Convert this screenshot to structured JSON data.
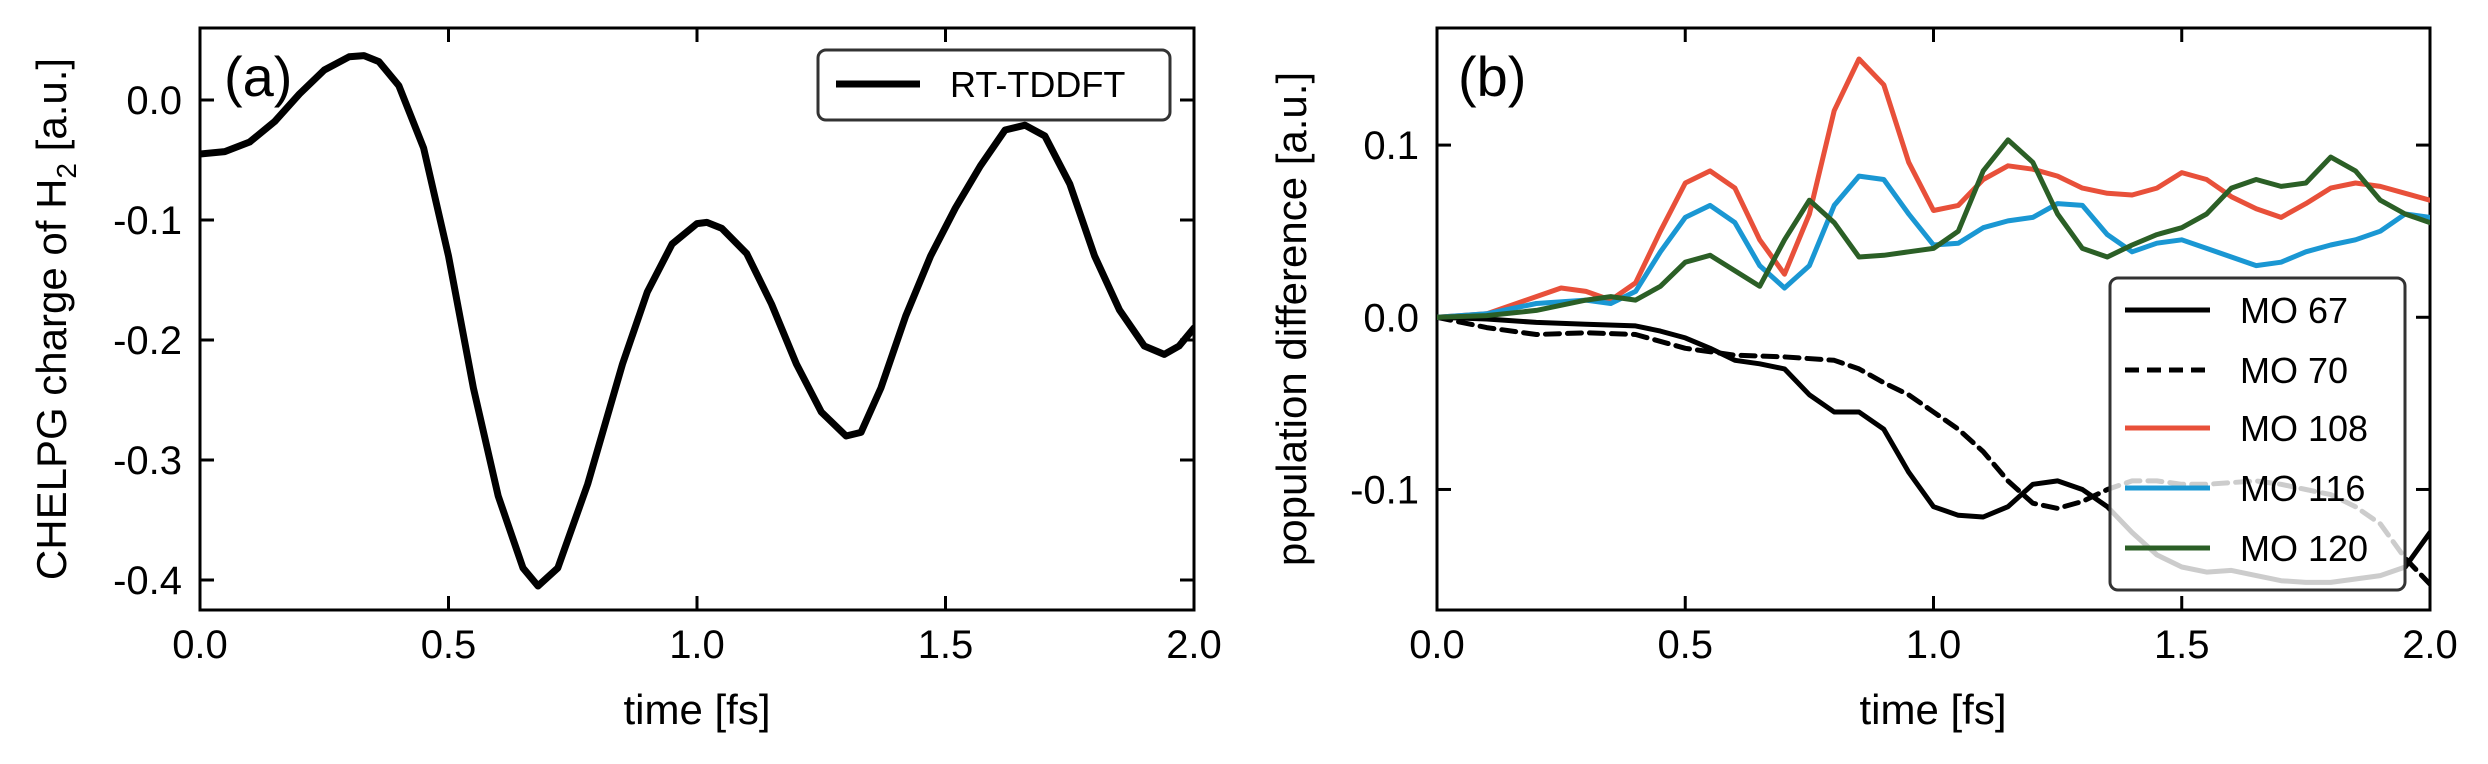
{
  "chart_data": [
    {
      "type": "line",
      "panel": "(a)",
      "xlabel": "time [fs]",
      "ylabel": "CHELPG charge of H",
      "ylabel_sub": "2",
      "ylabel_tail": " [a.u.]",
      "xlim": [
        0.0,
        2.0
      ],
      "ylim": [
        -0.425,
        0.06
      ],
      "xticks": [
        0.0,
        0.5,
        1.0,
        1.5,
        2.0
      ],
      "xtick_labels": [
        "0.0",
        "0.5",
        "1.0",
        "1.5",
        "2.0"
      ],
      "yticks": [
        0.0,
        -0.1,
        -0.2,
        -0.3,
        -0.4
      ],
      "ytick_labels": [
        "0.0",
        "-0.1",
        "-0.2",
        "-0.3",
        "-0.4"
      ],
      "legend_position": "top-right",
      "grid": false,
      "series": [
        {
          "name": "RT-TDDFT",
          "color": "#000000",
          "dash": "",
          "points": [
            [
              0.0,
              -0.045
            ],
            [
              0.05,
              -0.043
            ],
            [
              0.1,
              -0.035
            ],
            [
              0.15,
              -0.018
            ],
            [
              0.2,
              0.005
            ],
            [
              0.25,
              0.025
            ],
            [
              0.3,
              0.036
            ],
            [
              0.33,
              0.037
            ],
            [
              0.36,
              0.032
            ],
            [
              0.4,
              0.012
            ],
            [
              0.45,
              -0.04
            ],
            [
              0.5,
              -0.13
            ],
            [
              0.55,
              -0.24
            ],
            [
              0.6,
              -0.33
            ],
            [
              0.65,
              -0.39
            ],
            [
              0.68,
              -0.405
            ],
            [
              0.72,
              -0.39
            ],
            [
              0.78,
              -0.32
            ],
            [
              0.85,
              -0.22
            ],
            [
              0.9,
              -0.16
            ],
            [
              0.95,
              -0.12
            ],
            [
              1.0,
              -0.103
            ],
            [
              1.02,
              -0.102
            ],
            [
              1.05,
              -0.107
            ],
            [
              1.1,
              -0.128
            ],
            [
              1.15,
              -0.17
            ],
            [
              1.2,
              -0.22
            ],
            [
              1.25,
              -0.26
            ],
            [
              1.3,
              -0.28
            ],
            [
              1.33,
              -0.277
            ],
            [
              1.37,
              -0.24
            ],
            [
              1.42,
              -0.18
            ],
            [
              1.47,
              -0.13
            ],
            [
              1.52,
              -0.09
            ],
            [
              1.57,
              -0.055
            ],
            [
              1.62,
              -0.025
            ],
            [
              1.66,
              -0.021
            ],
            [
              1.7,
              -0.03
            ],
            [
              1.75,
              -0.07
            ],
            [
              1.8,
              -0.13
            ],
            [
              1.85,
              -0.175
            ],
            [
              1.9,
              -0.205
            ],
            [
              1.94,
              -0.212
            ],
            [
              1.97,
              -0.205
            ],
            [
              2.0,
              -0.19
            ]
          ]
        }
      ]
    },
    {
      "type": "line",
      "panel": "(b)",
      "xlabel": "time [fs]",
      "ylabel": "population difference [a.u.]",
      "xlim": [
        0.0,
        2.0
      ],
      "ylim": [
        -0.17,
        0.168
      ],
      "xticks": [
        0.0,
        0.5,
        1.0,
        1.5,
        2.0
      ],
      "xtick_labels": [
        "0.0",
        "0.5",
        "1.0",
        "1.5",
        "2.0"
      ],
      "yticks": [
        0.1,
        0.0,
        -0.1
      ],
      "ytick_labels": [
        "0.1",
        "0.0",
        "-0.1"
      ],
      "legend_position": "lower-right",
      "grid": false,
      "series": [
        {
          "name": "MO 67",
          "color": "#000000",
          "dash": "",
          "points": [
            [
              0.0,
              0.0
            ],
            [
              0.1,
              -0.001
            ],
            [
              0.2,
              -0.003
            ],
            [
              0.3,
              -0.004
            ],
            [
              0.4,
              -0.005
            ],
            [
              0.45,
              -0.008
            ],
            [
              0.5,
              -0.012
            ],
            [
              0.55,
              -0.018
            ],
            [
              0.6,
              -0.025
            ],
            [
              0.65,
              -0.027
            ],
            [
              0.7,
              -0.03
            ],
            [
              0.75,
              -0.045
            ],
            [
              0.8,
              -0.055
            ],
            [
              0.85,
              -0.055
            ],
            [
              0.9,
              -0.065
            ],
            [
              0.95,
              -0.09
            ],
            [
              1.0,
              -0.11
            ],
            [
              1.05,
              -0.115
            ],
            [
              1.1,
              -0.116
            ],
            [
              1.15,
              -0.11
            ],
            [
              1.2,
              -0.097
            ],
            [
              1.25,
              -0.095
            ],
            [
              1.3,
              -0.1
            ],
            [
              1.35,
              -0.11
            ],
            [
              1.4,
              -0.125
            ],
            [
              1.45,
              -0.138
            ],
            [
              1.5,
              -0.145
            ],
            [
              1.55,
              -0.148
            ],
            [
              1.6,
              -0.147
            ],
            [
              1.65,
              -0.15
            ],
            [
              1.7,
              -0.153
            ],
            [
              1.75,
              -0.154
            ],
            [
              1.8,
              -0.154
            ],
            [
              1.85,
              -0.152
            ],
            [
              1.9,
              -0.15
            ],
            [
              1.95,
              -0.145
            ],
            [
              2.0,
              -0.125
            ]
          ]
        },
        {
          "name": "MO 70",
          "color": "#000000",
          "dash": "14 8",
          "points": [
            [
              0.0,
              0.0
            ],
            [
              0.1,
              -0.006
            ],
            [
              0.2,
              -0.01
            ],
            [
              0.3,
              -0.009
            ],
            [
              0.4,
              -0.01
            ],
            [
              0.5,
              -0.018
            ],
            [
              0.6,
              -0.022
            ],
            [
              0.7,
              -0.023
            ],
            [
              0.8,
              -0.025
            ],
            [
              0.85,
              -0.03
            ],
            [
              0.9,
              -0.038
            ],
            [
              0.95,
              -0.045
            ],
            [
              1.0,
              -0.055
            ],
            [
              1.05,
              -0.065
            ],
            [
              1.1,
              -0.078
            ],
            [
              1.15,
              -0.095
            ],
            [
              1.2,
              -0.108
            ],
            [
              1.25,
              -0.111
            ],
            [
              1.3,
              -0.107
            ],
            [
              1.35,
              -0.1
            ],
            [
              1.4,
              -0.095
            ],
            [
              1.45,
              -0.095
            ],
            [
              1.5,
              -0.097
            ],
            [
              1.55,
              -0.097
            ],
            [
              1.6,
              -0.096
            ],
            [
              1.65,
              -0.095
            ],
            [
              1.7,
              -0.097
            ],
            [
              1.75,
              -0.1
            ],
            [
              1.8,
              -0.103
            ],
            [
              1.85,
              -0.11
            ],
            [
              1.9,
              -0.12
            ],
            [
              1.95,
              -0.14
            ],
            [
              2.0,
              -0.155
            ]
          ]
        },
        {
          "name": "MO 108",
          "color": "#e8503a",
          "dash": "",
          "points": [
            [
              0.0,
              0.0
            ],
            [
              0.1,
              0.002
            ],
            [
              0.2,
              0.012
            ],
            [
              0.25,
              0.017
            ],
            [
              0.3,
              0.015
            ],
            [
              0.35,
              0.01
            ],
            [
              0.4,
              0.02
            ],
            [
              0.45,
              0.05
            ],
            [
              0.5,
              0.078
            ],
            [
              0.55,
              0.085
            ],
            [
              0.6,
              0.075
            ],
            [
              0.65,
              0.045
            ],
            [
              0.7,
              0.025
            ],
            [
              0.75,
              0.06
            ],
            [
              0.8,
              0.12
            ],
            [
              0.85,
              0.15
            ],
            [
              0.9,
              0.135
            ],
            [
              0.95,
              0.09
            ],
            [
              1.0,
              0.062
            ],
            [
              1.05,
              0.065
            ],
            [
              1.1,
              0.08
            ],
            [
              1.15,
              0.088
            ],
            [
              1.2,
              0.086
            ],
            [
              1.25,
              0.082
            ],
            [
              1.3,
              0.075
            ],
            [
              1.35,
              0.072
            ],
            [
              1.4,
              0.071
            ],
            [
              1.45,
              0.075
            ],
            [
              1.5,
              0.084
            ],
            [
              1.55,
              0.08
            ],
            [
              1.6,
              0.07
            ],
            [
              1.65,
              0.063
            ],
            [
              1.7,
              0.058
            ],
            [
              1.75,
              0.066
            ],
            [
              1.8,
              0.075
            ],
            [
              1.85,
              0.078
            ],
            [
              1.9,
              0.076
            ],
            [
              1.95,
              0.072
            ],
            [
              2.0,
              0.068
            ]
          ]
        },
        {
          "name": "MO 116",
          "color": "#1a97d3",
          "dash": "",
          "points": [
            [
              0.0,
              0.0
            ],
            [
              0.1,
              0.002
            ],
            [
              0.2,
              0.008
            ],
            [
              0.3,
              0.01
            ],
            [
              0.35,
              0.008
            ],
            [
              0.4,
              0.015
            ],
            [
              0.45,
              0.038
            ],
            [
              0.5,
              0.058
            ],
            [
              0.55,
              0.065
            ],
            [
              0.6,
              0.055
            ],
            [
              0.65,
              0.03
            ],
            [
              0.7,
              0.017
            ],
            [
              0.75,
              0.03
            ],
            [
              0.8,
              0.065
            ],
            [
              0.85,
              0.082
            ],
            [
              0.9,
              0.08
            ],
            [
              0.95,
              0.06
            ],
            [
              1.0,
              0.042
            ],
            [
              1.05,
              0.043
            ],
            [
              1.1,
              0.052
            ],
            [
              1.15,
              0.056
            ],
            [
              1.2,
              0.058
            ],
            [
              1.25,
              0.066
            ],
            [
              1.3,
              0.065
            ],
            [
              1.35,
              0.048
            ],
            [
              1.4,
              0.038
            ],
            [
              1.45,
              0.043
            ],
            [
              1.5,
              0.045
            ],
            [
              1.55,
              0.04
            ],
            [
              1.6,
              0.035
            ],
            [
              1.65,
              0.03
            ],
            [
              1.7,
              0.032
            ],
            [
              1.75,
              0.038
            ],
            [
              1.8,
              0.042
            ],
            [
              1.85,
              0.045
            ],
            [
              1.9,
              0.05
            ],
            [
              1.95,
              0.06
            ],
            [
              2.0,
              0.058
            ]
          ]
        },
        {
          "name": "MO 120",
          "color": "#2b5f26",
          "dash": "",
          "points": [
            [
              0.0,
              0.0
            ],
            [
              0.1,
              0.001
            ],
            [
              0.2,
              0.004
            ],
            [
              0.3,
              0.01
            ],
            [
              0.35,
              0.012
            ],
            [
              0.4,
              0.01
            ],
            [
              0.45,
              0.018
            ],
            [
              0.5,
              0.032
            ],
            [
              0.55,
              0.036
            ],
            [
              0.6,
              0.027
            ],
            [
              0.65,
              0.018
            ],
            [
              0.7,
              0.045
            ],
            [
              0.75,
              0.068
            ],
            [
              0.8,
              0.055
            ],
            [
              0.85,
              0.035
            ],
            [
              0.9,
              0.036
            ],
            [
              0.95,
              0.038
            ],
            [
              1.0,
              0.04
            ],
            [
              1.05,
              0.05
            ],
            [
              1.1,
              0.085
            ],
            [
              1.15,
              0.103
            ],
            [
              1.2,
              0.09
            ],
            [
              1.25,
              0.06
            ],
            [
              1.3,
              0.04
            ],
            [
              1.35,
              0.035
            ],
            [
              1.4,
              0.042
            ],
            [
              1.45,
              0.048
            ],
            [
              1.5,
              0.052
            ],
            [
              1.55,
              0.06
            ],
            [
              1.6,
              0.075
            ],
            [
              1.65,
              0.08
            ],
            [
              1.7,
              0.076
            ],
            [
              1.75,
              0.078
            ],
            [
              1.8,
              0.093
            ],
            [
              1.85,
              0.085
            ],
            [
              1.9,
              0.068
            ],
            [
              1.95,
              0.06
            ],
            [
              2.0,
              0.055
            ]
          ]
        }
      ]
    }
  ]
}
